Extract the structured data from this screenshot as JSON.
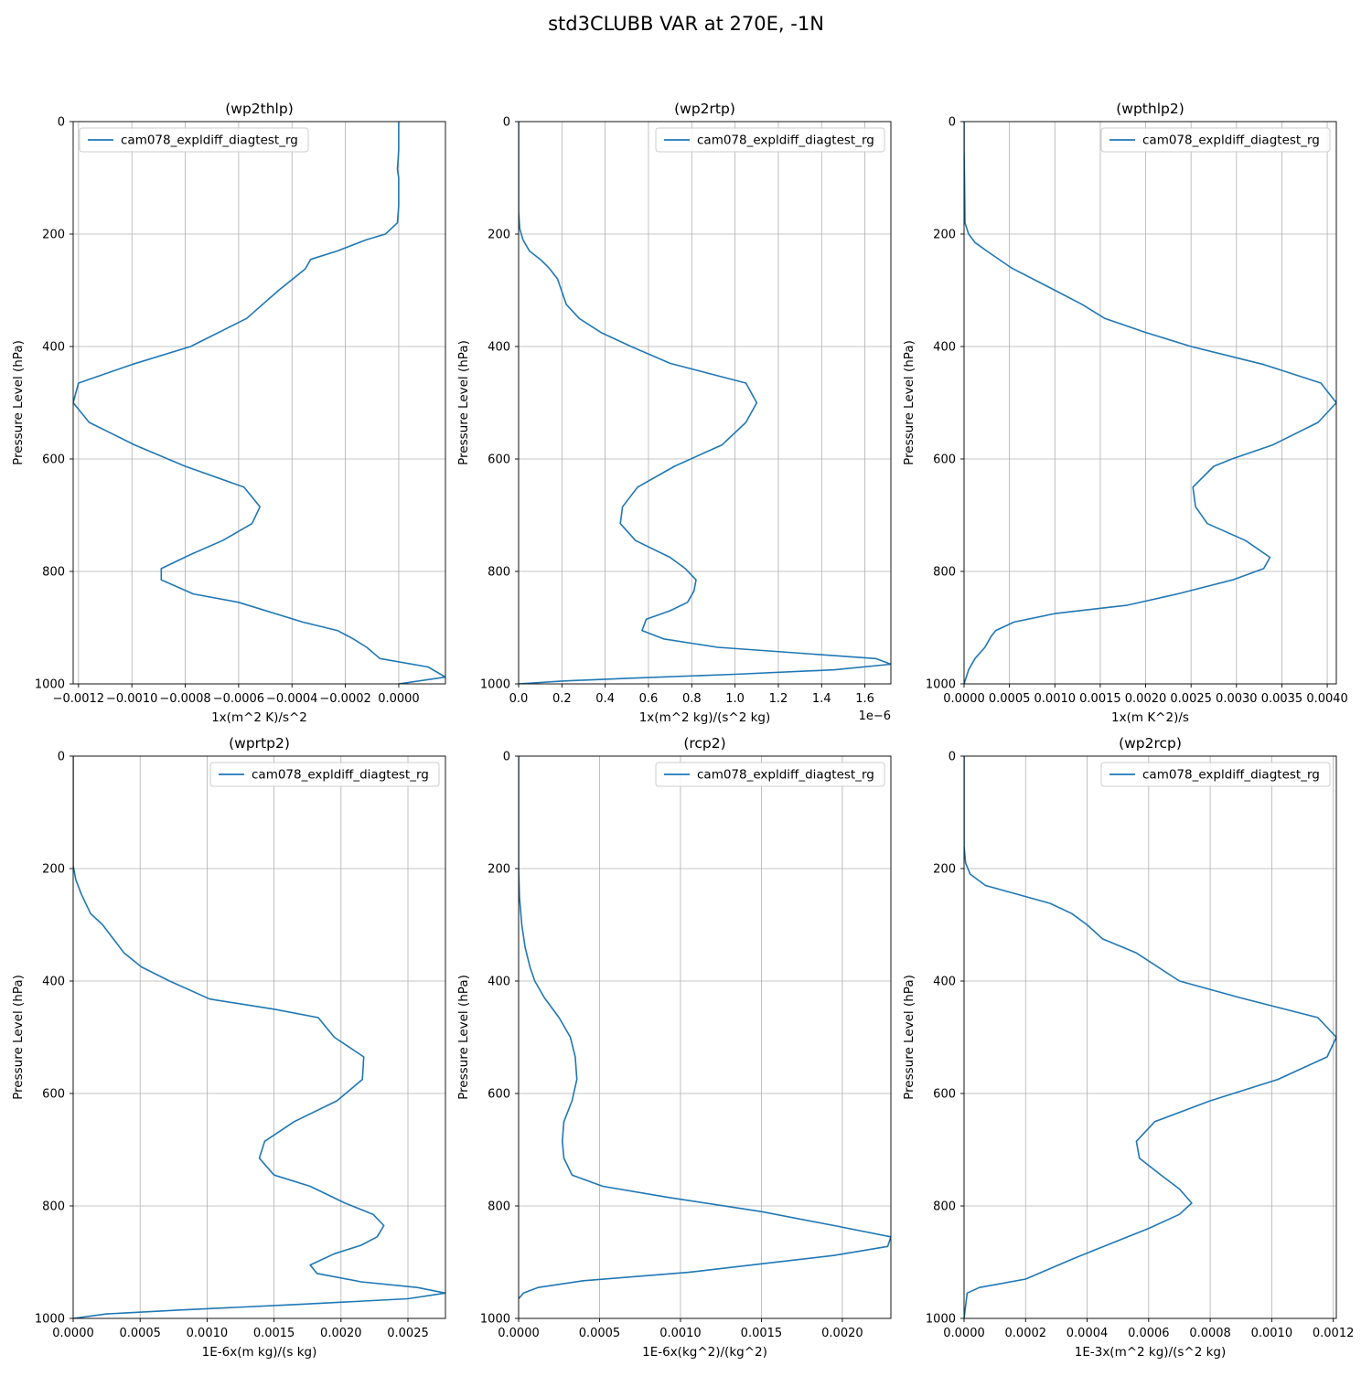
{
  "figure": {
    "title": "std3CLUBB VAR at 270E, -1N"
  },
  "colors": {
    "series": "#1f77b4",
    "grid": "#b0b0b0",
    "axes": "#000000"
  },
  "chart_data": [
    {
      "type": "line",
      "title": "(wp2thlp)",
      "xlabel": "1x(m^2 K)/s^2",
      "ylabel": "Pressure Level (hPa)",
      "x_offset_label": "",
      "xlim": [
        -0.00122,
        0.000175
      ],
      "ylim": [
        1000,
        0
      ],
      "xticks": [
        -0.0012,
        -0.001,
        -0.0008,
        -0.0006,
        -0.0004,
        -0.0002,
        0.0
      ],
      "xtick_labels": [
        "−0.0012",
        "−0.0010",
        "−0.0008",
        "−0.0006",
        "−0.0004",
        "−0.0002",
        "0.0000"
      ],
      "yticks": [
        0,
        200,
        400,
        600,
        800,
        1000
      ],
      "ytick_labels": [
        "0",
        "200",
        "400",
        "600",
        "800",
        "1000"
      ],
      "grid": true,
      "legend": "upper left",
      "series": [
        {
          "name": "cam078_expldiff_diagtest_rg",
          "x": [
            0.0,
            0.0,
            -5e-06,
            0.0,
            0.0,
            -5e-06,
            -5e-05,
            -0.00012,
            -0.00023,
            -0.00033,
            -0.00035,
            -0.00045,
            -0.00057,
            -0.00078,
            -0.001,
            -0.0012,
            -0.00122,
            -0.00116,
            -0.00099,
            -0.0008,
            -0.00058,
            -0.00052,
            -0.00055,
            -0.00066,
            -0.00078,
            -0.00089,
            -0.00089,
            -0.00077,
            -0.0006,
            -0.00036,
            -0.00023,
            -0.00017,
            -0.00012,
            -7e-05,
            0.00011,
            0.000175,
            0.0
          ],
          "y": [
            0,
            50,
            85,
            100,
            150,
            180,
            200,
            210,
            230,
            245,
            262,
            300,
            350,
            400,
            432,
            465,
            500,
            535,
            575,
            613,
            650,
            685,
            715,
            745,
            770,
            795,
            815,
            840,
            855,
            890,
            905,
            920,
            935,
            955,
            970,
            988,
            1000
          ]
        }
      ]
    },
    {
      "type": "line",
      "title": "(wp2rtp)",
      "xlabel": "1x(m^2 kg)/(s^2 kg)",
      "ylabel": "Pressure Level (hPa)",
      "x_offset_label": "1e−6",
      "xlim": [
        0.0,
        1.72
      ],
      "ylim": [
        1000,
        0
      ],
      "xticks": [
        0.0,
        0.2,
        0.4,
        0.6,
        0.8,
        1.0,
        1.2,
        1.4,
        1.6
      ],
      "xtick_labels": [
        "0.0",
        "0.2",
        "0.4",
        "0.6",
        "0.8",
        "1.0",
        "1.2",
        "1.4",
        "1.6"
      ],
      "yticks": [
        0,
        200,
        400,
        600,
        800,
        1000
      ],
      "ytick_labels": [
        "0",
        "200",
        "400",
        "600",
        "800",
        "1000"
      ],
      "grid": true,
      "legend": "upper right",
      "series": [
        {
          "name": "cam078_expldiff_diagtest_rg",
          "x": [
            0.0,
            0.0,
            0.005,
            0.02,
            0.05,
            0.1,
            0.14,
            0.18,
            0.22,
            0.28,
            0.38,
            0.52,
            0.7,
            1.05,
            1.1,
            1.05,
            0.94,
            0.72,
            0.55,
            0.48,
            0.47,
            0.54,
            0.7,
            0.77,
            0.82,
            0.81,
            0.78,
            0.7,
            0.59,
            0.57,
            0.67,
            0.92,
            1.65,
            1.72,
            1.46,
            1.0,
            0.5,
            0.2,
            0.0
          ],
          "y": [
            0,
            160,
            190,
            210,
            230,
            245,
            260,
            280,
            325,
            350,
            375,
            400,
            430,
            465,
            500,
            535,
            575,
            613,
            650,
            685,
            715,
            745,
            775,
            795,
            815,
            835,
            855,
            870,
            885,
            905,
            920,
            935,
            955,
            965,
            975,
            983,
            990,
            995,
            1000
          ]
        }
      ]
    },
    {
      "type": "line",
      "title": "(wpthlp2)",
      "xlabel": "1x(m K^2)/s",
      "ylabel": "Pressure Level (hPa)",
      "x_offset_label": "",
      "xlim": [
        0.0,
        0.0041
      ],
      "ylim": [
        1000,
        0
      ],
      "xticks": [
        0.0,
        0.0005,
        0.001,
        0.0015,
        0.002,
        0.0025,
        0.003,
        0.0035,
        0.004
      ],
      "xtick_labels": [
        "0.0000",
        "0.0005",
        "0.0010",
        "0.0015",
        "0.0020",
        "0.0025",
        "0.0030",
        "0.0035",
        "0.0040"
      ],
      "yticks": [
        0,
        200,
        400,
        600,
        800,
        1000
      ],
      "ytick_labels": [
        "0",
        "200",
        "400",
        "600",
        "800",
        "1000"
      ],
      "grid": true,
      "legend": "upper right",
      "series": [
        {
          "name": "cam078_expldiff_diagtest_rg",
          "x": [
            0.0,
            0.0,
            5e-06,
            1e-05,
            5e-05,
            0.00012,
            0.00025,
            0.00052,
            0.001,
            0.0013,
            0.00155,
            0.002,
            0.0025,
            0.0033,
            0.00393,
            0.0041,
            0.0039,
            0.0034,
            0.00295,
            0.00275,
            0.00252,
            0.00255,
            0.00268,
            0.0031,
            0.00337,
            0.0033,
            0.00296,
            0.00235,
            0.0018,
            0.001,
            0.00055,
            0.00035,
            0.0003,
            0.00023,
            0.00012,
            5e-05,
            0.0
          ],
          "y": [
            0,
            50,
            100,
            180,
            200,
            215,
            230,
            260,
            300,
            325,
            350,
            375,
            400,
            432,
            465,
            500,
            535,
            575,
            600,
            613,
            650,
            685,
            715,
            745,
            775,
            795,
            815,
            840,
            860,
            875,
            890,
            905,
            915,
            935,
            955,
            975,
            1000
          ]
        }
      ]
    },
    {
      "type": "line",
      "title": "(wprtp2)",
      "xlabel": "1E-6x(m kg)/(s kg)",
      "ylabel": "Pressure Level (hPa)",
      "x_offset_label": "",
      "xlim": [
        0.0,
        0.00278
      ],
      "ylim": [
        1000,
        0
      ],
      "xticks": [
        0.0,
        0.0005,
        0.001,
        0.0015,
        0.002,
        0.0025
      ],
      "xtick_labels": [
        "0.0000",
        "0.0005",
        "0.0010",
        "0.0015",
        "0.0020",
        "0.0025"
      ],
      "yticks": [
        0,
        200,
        400,
        600,
        800,
        1000
      ],
      "ytick_labels": [
        "0",
        "200",
        "400",
        "600",
        "800",
        "1000"
      ],
      "grid": true,
      "legend": "upper right",
      "series": [
        {
          "name": "cam078_expldiff_diagtest_rg",
          "x": [
            0.0,
            0.0,
            2e-05,
            6e-05,
            0.00013,
            0.00022,
            0.0003,
            0.00038,
            0.00051,
            0.00072,
            0.00102,
            0.0015,
            0.00183,
            0.00195,
            0.00217,
            0.00216,
            0.00197,
            0.00165,
            0.00143,
            0.00139,
            0.0015,
            0.00177,
            0.00203,
            0.00224,
            0.00232,
            0.00227,
            0.00215,
            0.00195,
            0.00177,
            0.00182,
            0.00215,
            0.00257,
            0.00278,
            0.0025,
            0.0017,
            0.0008,
            0.00025,
            0.0
          ],
          "y": [
            0,
            195,
            220,
            245,
            280,
            300,
            325,
            350,
            375,
            400,
            432,
            450,
            465,
            500,
            535,
            575,
            613,
            650,
            685,
            715,
            745,
            765,
            795,
            815,
            835,
            855,
            870,
            885,
            905,
            920,
            935,
            945,
            955,
            965,
            975,
            985,
            992,
            1000
          ]
        }
      ]
    },
    {
      "type": "line",
      "title": "(rcp2)",
      "xlabel": "1E-6x(kg^2)/(kg^2)",
      "ylabel": "Pressure Level (hPa)",
      "x_offset_label": "",
      "xlim": [
        0.0,
        0.0023
      ],
      "ylim": [
        1000,
        0
      ],
      "xticks": [
        0.0,
        0.0005,
        0.001,
        0.0015,
        0.002
      ],
      "xtick_labels": [
        "0.0000",
        "0.0005",
        "0.0010",
        "0.0015",
        "0.0020"
      ],
      "yticks": [
        0,
        200,
        400,
        600,
        800,
        1000
      ],
      "ytick_labels": [
        "0",
        "200",
        "400",
        "600",
        "800",
        "1000"
      ],
      "grid": true,
      "legend": "upper right",
      "series": [
        {
          "name": "cam078_expldiff_diagtest_rg",
          "x": [
            0.0,
            0.0,
            5e-06,
            2e-05,
            4e-05,
            7e-05,
            0.0001,
            0.00016,
            0.00025,
            0.00032,
            0.00035,
            0.00036,
            0.00033,
            0.00028,
            0.00027,
            0.00028,
            0.00033,
            0.00052,
            0.00093,
            0.0015,
            0.00195,
            0.0023,
            0.00228,
            0.00195,
            0.0015,
            0.00105,
            0.0004,
            0.00012,
            3e-05,
            0.0
          ],
          "y": [
            0,
            200,
            250,
            300,
            340,
            375,
            400,
            430,
            465,
            500,
            535,
            575,
            613,
            650,
            685,
            715,
            745,
            765,
            785,
            810,
            835,
            855,
            872,
            888,
            903,
            918,
            933,
            945,
            955,
            965
          ]
        }
      ]
    },
    {
      "type": "line",
      "title": "(wp2rcp)",
      "xlabel": "1E-3x(m^2 kg)/(s^2 kg)",
      "ylabel": "Pressure Level (hPa)",
      "x_offset_label": "",
      "xlim": [
        0.0,
        0.00121
      ],
      "ylim": [
        1000,
        0
      ],
      "xticks": [
        0.0,
        0.0002,
        0.0004,
        0.0006,
        0.0008,
        0.001,
        0.0012
      ],
      "xtick_labels": [
        "0.0000",
        "0.0002",
        "0.0004",
        "0.0006",
        "0.0008",
        "0.0010",
        "0.0012"
      ],
      "yticks": [
        0,
        200,
        400,
        600,
        800,
        1000
      ],
      "ytick_labels": [
        "0",
        "200",
        "400",
        "600",
        "800",
        "1000"
      ],
      "grid": true,
      "legend": "upper right",
      "series": [
        {
          "name": "cam078_expldiff_diagtest_rg",
          "x": [
            0.0,
            0.0,
            5e-06,
            2e-05,
            7e-05,
            0.00028,
            0.00035,
            0.0004,
            0.00045,
            0.00056,
            0.0007,
            0.0009,
            0.00115,
            0.00121,
            0.00118,
            0.00102,
            0.0008,
            0.00062,
            0.00056,
            0.00057,
            0.00064,
            0.0007,
            0.00074,
            0.0007,
            0.0006,
            0.00044,
            0.00035,
            0.0002,
            5e-05,
            1e-05,
            0.0
          ],
          "y": [
            0,
            160,
            190,
            210,
            230,
            262,
            280,
            300,
            325,
            350,
            400,
            430,
            465,
            500,
            535,
            575,
            613,
            650,
            685,
            715,
            745,
            770,
            795,
            815,
            840,
            875,
            895,
            930,
            945,
            955,
            1000
          ]
        }
      ]
    }
  ]
}
